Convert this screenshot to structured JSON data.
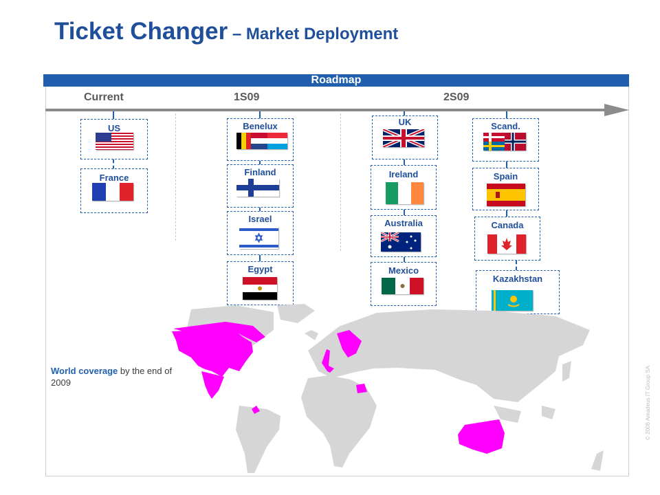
{
  "title": {
    "main": "Ticket Changer",
    "dash": " – ",
    "sub": "Market Deployment"
  },
  "roadmap": {
    "label": "Roadmap",
    "phases": [
      "Current",
      "1S09",
      "2S09"
    ]
  },
  "markets": {
    "current": [
      "US",
      "France"
    ],
    "s1": [
      "Benelux",
      "Finland",
      "Israel",
      "Egypt"
    ],
    "s2a": [
      "UK",
      "Ireland",
      "Australia",
      "Mexico"
    ],
    "s2b": [
      "Scand.",
      "Spain",
      "Canada",
      "Kazakhstan"
    ]
  },
  "caption": {
    "emphasis": "World coverage",
    "rest": " by the end of 2009"
  },
  "copyright": "© 2008 Amadeus IT Group SA",
  "colors": {
    "accent": "#1f5fae",
    "title": "#1f4e9a",
    "highlight": "#ff00ff",
    "land": "#d6d6d6",
    "timeline": "#8c8c8c"
  }
}
